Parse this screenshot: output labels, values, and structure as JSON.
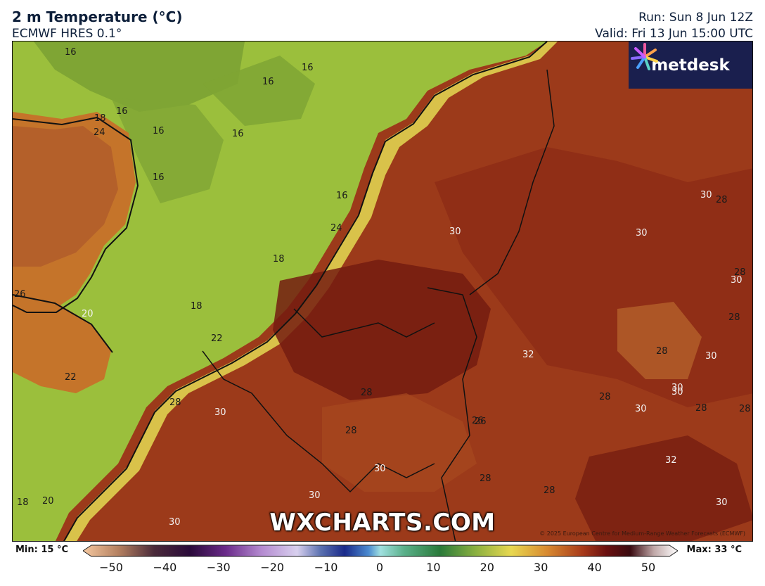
{
  "header": {
    "title": "2 m Temperature (°C)",
    "model": "ECMWF HRES 0.1°",
    "run": "Run: Sun 8 Jun 12Z",
    "valid": "Valid: Fri 13 Jun 15:00 UTC"
  },
  "logo": {
    "text": "metdesk"
  },
  "watermark": "WXCHARTS.COM",
  "copyright": "© 2025 European Centre for Medium-Range Weather Forecasts (ECMWF)",
  "legend": {
    "min_label": "Min: 15 °C",
    "max_label": "Max: 33 °C",
    "ticks": [
      "−50",
      "−40",
      "−30",
      "−20",
      "−10",
      "0",
      "10",
      "20",
      "30",
      "40",
      "50"
    ],
    "tick_values": [
      -50,
      -40,
      -30,
      -20,
      -10,
      0,
      10,
      20,
      30,
      40,
      50
    ]
  },
  "contour_labels": [
    {
      "text": "16",
      "tone": "dark"
    },
    {
      "text": "16",
      "tone": "dark"
    },
    {
      "text": "16",
      "tone": "dark"
    },
    {
      "text": "16",
      "tone": "dark"
    },
    {
      "text": "18",
      "tone": "dark"
    },
    {
      "text": "24",
      "tone": "dark"
    },
    {
      "text": "16",
      "tone": "dark"
    },
    {
      "text": "16",
      "tone": "dark"
    },
    {
      "text": "16",
      "tone": "dark"
    },
    {
      "text": "16",
      "tone": "dark"
    },
    {
      "text": "24",
      "tone": "dark"
    },
    {
      "text": "18",
      "tone": "dark"
    },
    {
      "text": "26",
      "tone": "dark"
    },
    {
      "text": "20",
      "tone": "light"
    },
    {
      "text": "18",
      "tone": "dark"
    },
    {
      "text": "22",
      "tone": "dark"
    },
    {
      "text": "22",
      "tone": "dark"
    },
    {
      "text": "28",
      "tone": "dark"
    },
    {
      "text": "30",
      "tone": "light"
    },
    {
      "text": "28",
      "tone": "dark"
    },
    {
      "text": "28",
      "tone": "dark"
    },
    {
      "text": "30",
      "tone": "light"
    },
    {
      "text": "30",
      "tone": "light"
    },
    {
      "text": "32",
      "tone": "light"
    },
    {
      "text": "26",
      "tone": "dark"
    },
    {
      "text": "28",
      "tone": "dark"
    },
    {
      "text": "28",
      "tone": "dark"
    },
    {
      "text": "30",
      "tone": "light"
    },
    {
      "text": "30",
      "tone": "light"
    },
    {
      "text": "30",
      "tone": "light"
    },
    {
      "text": "28",
      "tone": "dark"
    },
    {
      "text": "28",
      "tone": "dark"
    },
    {
      "text": "30",
      "tone": "light"
    },
    {
      "text": "28",
      "tone": "dark"
    },
    {
      "text": "30",
      "tone": "light"
    },
    {
      "text": "30",
      "tone": "light"
    },
    {
      "text": "28",
      "tone": "dark"
    },
    {
      "text": "28",
      "tone": "dark"
    },
    {
      "text": "32",
      "tone": "light"
    },
    {
      "text": "30",
      "tone": "light"
    },
    {
      "text": "30",
      "tone": "light"
    },
    {
      "text": "26",
      "tone": "dark"
    },
    {
      "text": "20",
      "tone": "dark"
    },
    {
      "text": "18",
      "tone": "dark"
    },
    {
      "text": "30",
      "tone": "light"
    },
    {
      "text": "30",
      "tone": "light"
    },
    {
      "text": "28",
      "tone": "dark"
    },
    {
      "text": "28",
      "tone": "dark"
    }
  ],
  "colors": {
    "sea_green": "#9bbf3c",
    "cool_green": "#7fa534",
    "warm_yellow": "#d9c24a",
    "orange": "#c5742a",
    "hot": "#a23e1c",
    "hotter": "#8c2a15",
    "hottest": "#741c10",
    "logo_bg": "#1a1f4e"
  }
}
